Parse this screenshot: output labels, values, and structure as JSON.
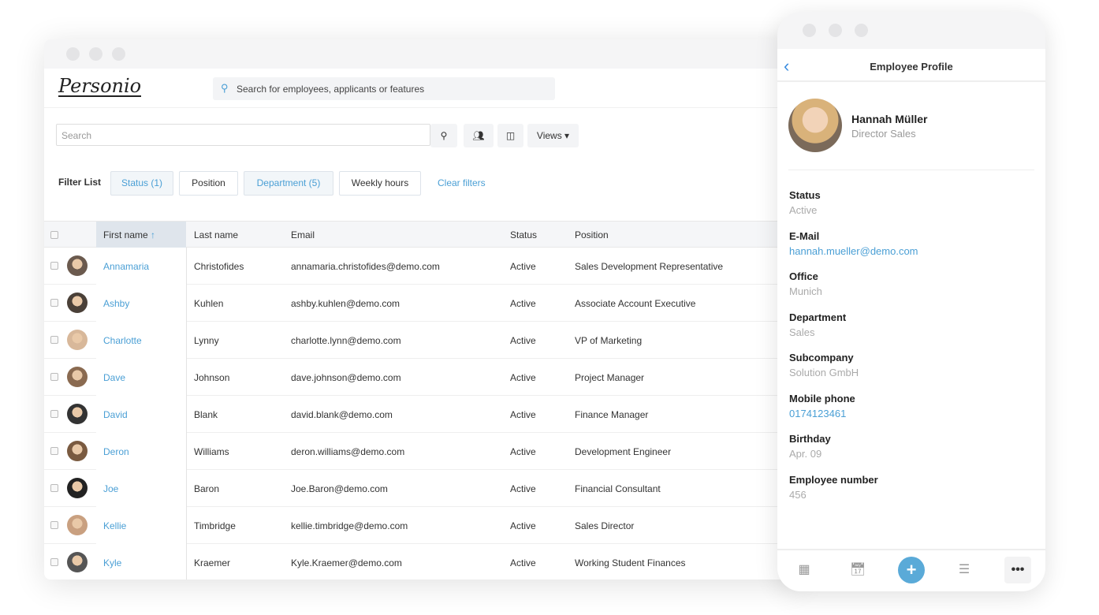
{
  "app": {
    "logo": "Personio",
    "global_search_placeholder": "Search for employees, applicants or features"
  },
  "toolbar": {
    "search_placeholder": "Search",
    "views_label": "Views ▾"
  },
  "filters": {
    "label": "Filter List",
    "items": [
      {
        "label": "Status (1)",
        "active": true
      },
      {
        "label": "Position",
        "active": false
      },
      {
        "label": "Department (5)",
        "active": true
      },
      {
        "label": "Weekly hours",
        "active": false
      }
    ],
    "clear_label": "Clear filters"
  },
  "table": {
    "columns": [
      "First name",
      "Last name",
      "Email",
      "Status",
      "Position"
    ],
    "sort_indicator": "↑",
    "rows": [
      [
        "Annamaria",
        "Christofides",
        "annamaria.christofides@demo.com",
        "Active",
        "Sales Development Representative"
      ],
      [
        "Ashby",
        "Kuhlen",
        "ashby.kuhlen@demo.com",
        "Active",
        "Associate Account Executive"
      ],
      [
        "Charlotte",
        "Lynny",
        "charlotte.lynn@demo.com",
        "Active",
        "VP of Marketing"
      ],
      [
        "Dave",
        "Johnson",
        "dave.johnson@demo.com",
        "Active",
        "Project Manager"
      ],
      [
        "David",
        "Blank",
        "david.blank@demo.com",
        "Active",
        "Finance Manager"
      ],
      [
        "Deron",
        "Williams",
        "deron.williams@demo.com",
        "Active",
        "Development Engineer"
      ],
      [
        "Joe",
        "Baron",
        "Joe.Baron@demo.com",
        "Active",
        "Financial Consultant"
      ],
      [
        "Kellie",
        "Timbridge",
        "kellie.timbridge@demo.com",
        "Active",
        "Sales Director"
      ],
      [
        "Kyle",
        "Kraemer",
        "Kyle.Kraemer@demo.com",
        "Active",
        "Working Student Finances"
      ]
    ]
  },
  "profile": {
    "title": "Employee Profile",
    "name": "Hannah Müller",
    "role": "Director Sales",
    "fields": [
      {
        "label": "Status",
        "value": "Active"
      },
      {
        "label": "E-Mail",
        "value": "hannah.mueller@demo.com",
        "link": true
      },
      {
        "label": "Office",
        "value": "Munich"
      },
      {
        "label": "Department",
        "value": "Sales"
      },
      {
        "label": "Subcompany",
        "value": "Solution GmbH"
      },
      {
        "label": "Mobile phone",
        "value": "0174123461",
        "link": true
      },
      {
        "label": "Birthday",
        "value": "Apr. 09"
      },
      {
        "label": "Employee number",
        "value": "456"
      }
    ]
  },
  "colors": {
    "accent": "#4a9fd5",
    "add_button": "#5aaad8"
  }
}
